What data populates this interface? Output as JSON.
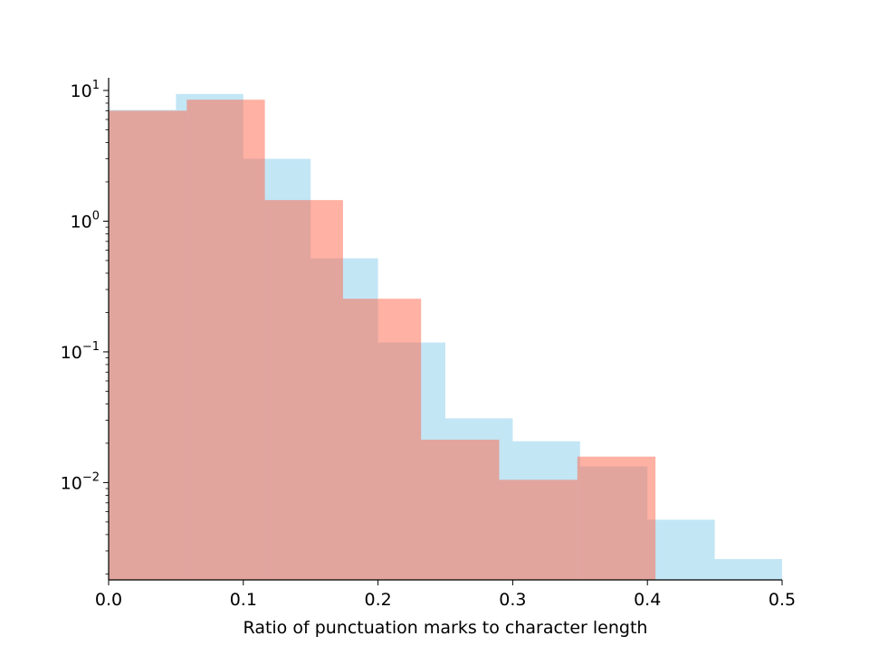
{
  "chart_data": {
    "type": "bar",
    "xlabel": "Ratio of punctuation marks to character length",
    "ylabel": "",
    "xlim": [
      0.0,
      0.5
    ],
    "ylim": [
      0.0018,
      12.5
    ],
    "yscale": "log",
    "grid": false,
    "xticks": [
      {
        "value": 0.0,
        "label": "0.0"
      },
      {
        "value": 0.1,
        "label": "0.1"
      },
      {
        "value": 0.2,
        "label": "0.2"
      },
      {
        "value": 0.3,
        "label": "0.3"
      },
      {
        "value": 0.4,
        "label": "0.4"
      },
      {
        "value": 0.5,
        "label": "0.5"
      }
    ],
    "yticks": [
      {
        "value": 10,
        "base": "10",
        "exp": "1"
      },
      {
        "value": 1,
        "base": "10",
        "exp": "0"
      },
      {
        "value": 0.1,
        "base": "10",
        "exp": "−1"
      },
      {
        "value": 0.01,
        "base": "10",
        "exp": "−2"
      }
    ],
    "series": [
      {
        "color": "#87CEEB",
        "opacity": 0.5,
        "bins": [
          {
            "x0": 0.0,
            "x1": 0.05,
            "value": 7.1
          },
          {
            "x0": 0.05,
            "x1": 0.1,
            "value": 9.4
          },
          {
            "x0": 0.1,
            "x1": 0.15,
            "value": 3.0
          },
          {
            "x0": 0.15,
            "x1": 0.2,
            "value": 0.52
          },
          {
            "x0": 0.2,
            "x1": 0.25,
            "value": 0.118
          },
          {
            "x0": 0.25,
            "x1": 0.3,
            "value": 0.031
          },
          {
            "x0": 0.3,
            "x1": 0.35,
            "value": 0.0207
          },
          {
            "x0": 0.35,
            "x1": 0.4,
            "value": 0.0133
          },
          {
            "x0": 0.4,
            "x1": 0.45,
            "value": 0.0052
          },
          {
            "x0": 0.45,
            "x1": 0.5,
            "value": 0.0026
          }
        ]
      },
      {
        "color": "#FF6347",
        "opacity": 0.5,
        "bins": [
          {
            "x0": 0.0,
            "x1": 0.058,
            "value": 7.0
          },
          {
            "x0": 0.058,
            "x1": 0.116,
            "value": 8.5
          },
          {
            "x0": 0.116,
            "x1": 0.174,
            "value": 1.45
          },
          {
            "x0": 0.174,
            "x1": 0.232,
            "value": 0.255
          },
          {
            "x0": 0.232,
            "x1": 0.29,
            "value": 0.0213
          },
          {
            "x0": 0.29,
            "x1": 0.348,
            "value": 0.0105
          },
          {
            "x0": 0.348,
            "x1": 0.406,
            "value": 0.0158
          }
        ]
      }
    ]
  }
}
